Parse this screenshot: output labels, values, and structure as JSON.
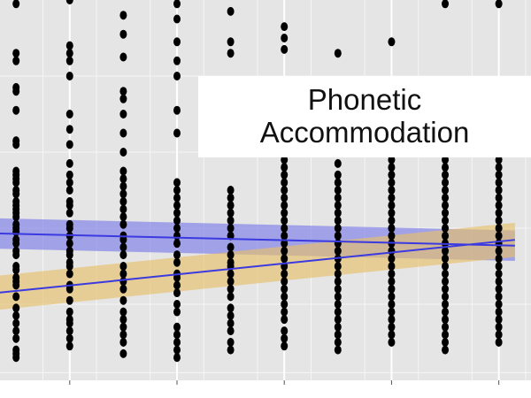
{
  "chart_data": {
    "type": "scatter",
    "title_lines": [
      "Phonetic",
      "Accommodation"
    ],
    "xlabel": "",
    "ylabel": "",
    "grid": true,
    "background": "#e5e5e5",
    "colors": {
      "points": "#000000",
      "blue_line": "#3a3ae0",
      "blue_band": "#7d7de8",
      "orange_band": "#e7c06a",
      "orange_line": "#3a3ae0"
    },
    "x": [
      1,
      2,
      3,
      4,
      5,
      6,
      7,
      8,
      9,
      10
    ],
    "xlim": [
      0.7,
      10.6
    ],
    "ylim": [
      0,
      1
    ],
    "point_columns": [
      {
        "x": 1,
        "y": [
          0.99,
          0.86,
          0.84,
          0.77,
          0.76,
          0.71,
          0.63,
          0.62,
          0.55,
          0.54,
          0.53,
          0.52,
          0.5,
          0.49,
          0.47,
          0.46,
          0.45,
          0.44,
          0.43,
          0.41,
          0.4,
          0.39,
          0.37,
          0.36,
          0.34,
          0.33,
          0.3,
          0.29,
          0.27,
          0.26,
          0.25,
          0.22,
          0.19,
          0.17,
          0.15,
          0.13,
          0.11,
          0.08,
          0.07,
          0.06
        ]
      },
      {
        "x": 2,
        "y": [
          1.0,
          0.88,
          0.86,
          0.84,
          0.8,
          0.7,
          0.66,
          0.62,
          0.57,
          0.54,
          0.52,
          0.5,
          0.47,
          0.46,
          0.44,
          0.41,
          0.4,
          0.38,
          0.36,
          0.34,
          0.33,
          0.31,
          0.3,
          0.28,
          0.25,
          0.24,
          0.21,
          0.18,
          0.16,
          0.15,
          0.13,
          0.11,
          0.09
        ]
      },
      {
        "x": 3,
        "y": [
          0.96,
          0.91,
          0.85,
          0.76,
          0.74,
          0.7,
          0.65,
          0.6,
          0.55,
          0.53,
          0.51,
          0.49,
          0.47,
          0.45,
          0.43,
          0.41,
          0.38,
          0.37,
          0.35,
          0.33,
          0.3,
          0.28,
          0.26,
          0.24,
          0.21,
          0.18,
          0.16,
          0.14,
          0.12,
          0.1,
          0.07
        ]
      },
      {
        "x": 4,
        "y": [
          0.99,
          0.95,
          0.89,
          0.84,
          0.8,
          0.71,
          0.65,
          0.52,
          0.5,
          0.48,
          0.46,
          0.44,
          0.42,
          0.4,
          0.38,
          0.36,
          0.33,
          0.31,
          0.28,
          0.27,
          0.25,
          0.23,
          0.2,
          0.18,
          0.14,
          0.12,
          0.1,
          0.08,
          0.06
        ]
      },
      {
        "x": 5,
        "y": [
          0.97,
          0.89,
          0.86,
          0.6,
          0.5,
          0.48,
          0.46,
          0.44,
          0.42,
          0.4,
          0.38,
          0.35,
          0.33,
          0.31,
          0.3,
          0.28,
          0.26,
          0.24,
          0.22,
          0.19,
          0.17,
          0.15,
          0.13,
          0.1,
          0.08
        ]
      },
      {
        "x": 6,
        "y": [
          0.93,
          0.9,
          0.87,
          0.64,
          0.62,
          0.58,
          0.56,
          0.54,
          0.52,
          0.5,
          0.48,
          0.46,
          0.44,
          0.42,
          0.4,
          0.38,
          0.36,
          0.34,
          0.32,
          0.3,
          0.28,
          0.26,
          0.24,
          0.22,
          0.2,
          0.18,
          0.16,
          0.13,
          0.11,
          0.09
        ]
      },
      {
        "x": 7,
        "y": [
          0.86,
          0.57,
          0.54,
          0.52,
          0.5,
          0.48,
          0.46,
          0.44,
          0.42,
          0.4,
          0.38,
          0.36,
          0.34,
          0.32,
          0.3,
          0.28,
          0.26,
          0.24,
          0.22,
          0.2,
          0.18,
          0.16,
          0.14,
          0.12,
          0.1,
          0.08
        ]
      },
      {
        "x": 8,
        "y": [
          0.89,
          0.65,
          0.62,
          0.6,
          0.58,
          0.56,
          0.54,
          0.52,
          0.5,
          0.48,
          0.46,
          0.44,
          0.42,
          0.4,
          0.38,
          0.36,
          0.34,
          0.32,
          0.3,
          0.28,
          0.26,
          0.24,
          0.22,
          0.2,
          0.18,
          0.16,
          0.14,
          0.12,
          0.1
        ]
      },
      {
        "x": 9,
        "y": [
          0.99,
          0.62,
          0.6,
          0.58,
          0.56,
          0.54,
          0.52,
          0.5,
          0.48,
          0.46,
          0.44,
          0.42,
          0.4,
          0.38,
          0.36,
          0.34,
          0.32,
          0.3,
          0.28,
          0.26,
          0.24,
          0.22,
          0.2,
          0.18,
          0.16,
          0.14,
          0.12,
          0.1,
          0.08
        ]
      },
      {
        "x": 10,
        "y": [
          0.99,
          0.64,
          0.62,
          0.6,
          0.58,
          0.56,
          0.54,
          0.52,
          0.5,
          0.48,
          0.46,
          0.44,
          0.42,
          0.4,
          0.38,
          0.36,
          0.34,
          0.32,
          0.3,
          0.28,
          0.26,
          0.24,
          0.22,
          0.2,
          0.18,
          0.16,
          0.14,
          0.12,
          0.1
        ]
      }
    ],
    "trend_lines": [
      {
        "start": [
          1,
          0.385
        ],
        "end": [
          10,
          0.355
        ],
        "band_half_width_start": 0.04,
        "band_half_width_end": 0.04,
        "color": "blue_line",
        "band_color": "blue_band"
      },
      {
        "start": [
          1,
          0.235
        ],
        "end": [
          10,
          0.365
        ],
        "band_half_width_start": 0.045,
        "band_half_width_end": 0.045,
        "color": "orange_line",
        "band_color": "orange_band"
      }
    ]
  }
}
